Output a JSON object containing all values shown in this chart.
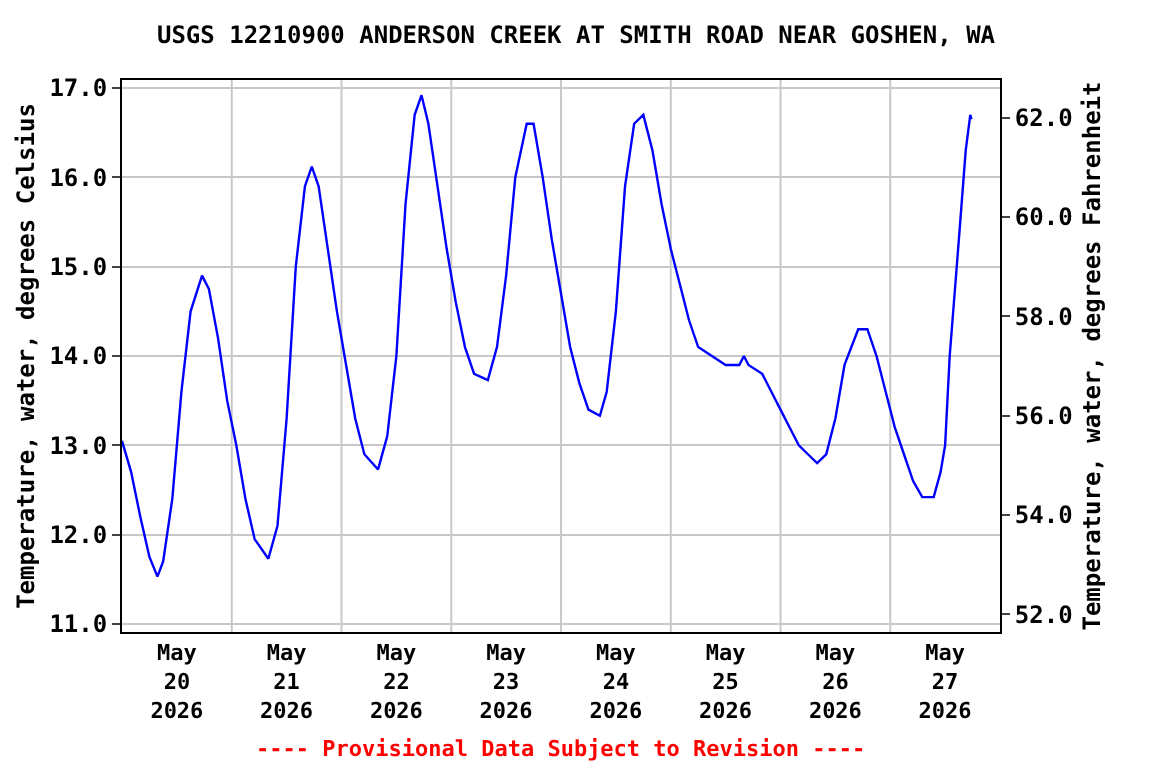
{
  "chart_data": {
    "type": "line",
    "title": "USGS 12210900 ANDERSON CREEK AT SMITH ROAD NEAR GOSHEN, WA",
    "ylabel": "Temperature, water, degrees Celsius",
    "y2label": "Temperature, water, degrees Fahrenheit",
    "annotations": [
      "---- Provisional Data Subject to Revision ----"
    ],
    "x": [
      "2026-05-20T00:00",
      "2026-05-20T02:00",
      "2026-05-20T04:00",
      "2026-05-20T06:00",
      "2026-05-20T07:45",
      "2026-05-20T09:00",
      "2026-05-20T11:00",
      "2026-05-20T13:00",
      "2026-05-20T15:00",
      "2026-05-20T17:30",
      "2026-05-20T19:00",
      "2026-05-20T21:00",
      "2026-05-20T23:00",
      "2026-05-21T01:00",
      "2026-05-21T03:00",
      "2026-05-21T05:00",
      "2026-05-21T08:00",
      "2026-05-21T10:00",
      "2026-05-21T12:00",
      "2026-05-21T14:00",
      "2026-05-21T16:00",
      "2026-05-21T17:30",
      "2026-05-21T19:00",
      "2026-05-21T21:00",
      "2026-05-21T23:00",
      "2026-05-22T01:00",
      "2026-05-22T03:00",
      "2026-05-22T05:00",
      "2026-05-22T08:00",
      "2026-05-22T10:00",
      "2026-05-22T12:00",
      "2026-05-22T14:00",
      "2026-05-22T16:00",
      "2026-05-22T17:30",
      "2026-05-22T19:00",
      "2026-05-22T21:00",
      "2026-05-22T23:00",
      "2026-05-23T01:00",
      "2026-05-23T03:00",
      "2026-05-23T05:00",
      "2026-05-23T08:00",
      "2026-05-23T10:00",
      "2026-05-23T12:00",
      "2026-05-23T14:00",
      "2026-05-23T16:30",
      "2026-05-23T18:00",
      "2026-05-23T20:00",
      "2026-05-23T22:00",
      "2026-05-24T00:00",
      "2026-05-24T02:00",
      "2026-05-24T04:00",
      "2026-05-24T06:00",
      "2026-05-24T08:30",
      "2026-05-24T10:00",
      "2026-05-24T12:00",
      "2026-05-24T14:00",
      "2026-05-24T16:00",
      "2026-05-24T18:00",
      "2026-05-24T20:00",
      "2026-05-24T22:00",
      "2026-05-25T00:00",
      "2026-05-25T02:00",
      "2026-05-25T04:00",
      "2026-05-25T06:00",
      "2026-05-25T09:00",
      "2026-05-25T12:00",
      "2026-05-25T15:00",
      "2026-05-25T16:00",
      "2026-05-25T17:00",
      "2026-05-25T20:00",
      "2026-05-25T22:00",
      "2026-05-26T00:00",
      "2026-05-26T02:00",
      "2026-05-26T04:00",
      "2026-05-26T06:00",
      "2026-05-26T08:00",
      "2026-05-26T10:00",
      "2026-05-26T12:00",
      "2026-05-26T14:00",
      "2026-05-26T17:00",
      "2026-05-26T19:00",
      "2026-05-26T21:00",
      "2026-05-26T23:00",
      "2026-05-27T01:00",
      "2026-05-27T03:00",
      "2026-05-27T05:00",
      "2026-05-27T07:00",
      "2026-05-27T09:30",
      "2026-05-27T11:00",
      "2026-05-27T12:00",
      "2026-05-27T13:00",
      "2026-05-27T15:00",
      "2026-05-27T16:30",
      "2026-05-27T17:30",
      "2026-05-27T17:45"
    ],
    "series": [
      {
        "color": "#0000ff",
        "values": [
          13.05,
          12.7,
          12.2,
          11.75,
          11.53,
          11.7,
          12.4,
          13.6,
          14.5,
          14.9,
          14.75,
          14.2,
          13.5,
          13.0,
          12.4,
          11.95,
          11.73,
          12.1,
          13.3,
          15.0,
          15.9,
          16.12,
          15.9,
          15.2,
          14.5,
          13.9,
          13.3,
          12.9,
          12.73,
          13.1,
          14.0,
          15.7,
          16.7,
          16.92,
          16.6,
          15.9,
          15.2,
          14.6,
          14.1,
          13.8,
          13.73,
          14.1,
          14.9,
          16.0,
          16.6,
          16.6,
          16.0,
          15.3,
          14.7,
          14.1,
          13.7,
          13.4,
          13.33,
          13.6,
          14.5,
          15.9,
          16.6,
          16.7,
          16.3,
          15.7,
          15.2,
          14.8,
          14.4,
          14.1,
          14.0,
          13.9,
          13.9,
          14.0,
          13.9,
          13.8,
          13.6,
          13.4,
          13.2,
          13.0,
          12.9,
          12.8,
          12.9,
          13.3,
          13.9,
          14.3,
          14.3,
          14.0,
          13.6,
          13.2,
          12.9,
          12.6,
          12.42,
          12.42,
          12.7,
          13.0,
          14.0,
          15.3,
          16.3,
          16.7,
          16.65
        ]
      }
    ],
    "xlim": [
      "2026-05-20T00:00",
      "2026-05-28T00:00"
    ],
    "xticks": [
      {
        "value": "2026-05-20T12:00",
        "label": "May\n20\n2026"
      },
      {
        "value": "2026-05-21T12:00",
        "label": "May\n21\n2026"
      },
      {
        "value": "2026-05-22T12:00",
        "label": "May\n22\n2026"
      },
      {
        "value": "2026-05-23T12:00",
        "label": "May\n23\n2026"
      },
      {
        "value": "2026-05-24T12:00",
        "label": "May\n24\n2026"
      },
      {
        "value": "2026-05-25T12:00",
        "label": "May\n25\n2026"
      },
      {
        "value": "2026-05-26T12:00",
        "label": "May\n26\n2026"
      },
      {
        "value": "2026-05-27T12:00",
        "label": "May\n27\n2026"
      },
      {
        "value": "2026-05-21T00:00",
        "label": null
      },
      {
        "value": "2026-05-22T00:00",
        "label": null
      },
      {
        "value": "2026-05-23T00:00",
        "label": null
      },
      {
        "value": "2026-05-24T00:00",
        "label": null
      },
      {
        "value": "2026-05-25T00:00",
        "label": null
      },
      {
        "value": "2026-05-26T00:00",
        "label": null
      },
      {
        "value": "2026-05-27T00:00",
        "label": null
      }
    ],
    "ylim": [
      10.91,
      17.09
    ],
    "yticks": [
      {
        "value": 11,
        "label": "11.0"
      },
      {
        "value": 12,
        "label": "12.0"
      },
      {
        "value": 13,
        "label": "13.0"
      },
      {
        "value": 14,
        "label": "14.0"
      },
      {
        "value": 15,
        "label": "15.0"
      },
      {
        "value": 16,
        "label": "16.0"
      },
      {
        "value": 17,
        "label": "17.0"
      }
    ],
    "y2lim": [
      51.64,
      62.76
    ],
    "y2ticks": [
      {
        "value": 52,
        "label": "52.0"
      },
      {
        "value": 54,
        "label": "54.0"
      },
      {
        "value": 56,
        "label": "56.0"
      },
      {
        "value": 58,
        "label": "58.0"
      },
      {
        "value": 60,
        "label": "60.0"
      },
      {
        "value": 62,
        "label": "62.0"
      }
    ],
    "grid": true,
    "marker": "none",
    "line_style": "solid"
  }
}
